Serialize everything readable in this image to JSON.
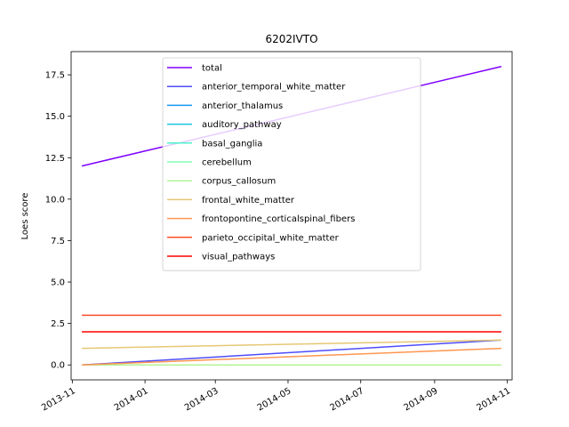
{
  "chart_data": {
    "type": "line",
    "title": "6202IVTO",
    "xlabel": "",
    "ylabel": "Loes score",
    "x": [
      "2013-11-09",
      "2014-10-27"
    ],
    "xlim": [
      "2013-10-31",
      "2014-11-05"
    ],
    "ylim": [
      -0.9,
      18.9
    ],
    "xticks": [
      "2013-11",
      "2014-01",
      "2014-03",
      "2014-05",
      "2014-07",
      "2014-09",
      "2014-11"
    ],
    "yticks": [
      "0.0",
      "2.5",
      "5.0",
      "7.5",
      "10.0",
      "12.5",
      "15.0",
      "17.5"
    ],
    "legend_position": "upper center",
    "series": [
      {
        "name": "total",
        "color": "#8000ff",
        "values": [
          12,
          18
        ]
      },
      {
        "name": "anterior_temporal_white_matter",
        "color": "#4d4dfc",
        "values": [
          0,
          1.5
        ]
      },
      {
        "name": "anterior_thalamus",
        "color": "#1996f3",
        "values": [
          0,
          0
        ]
      },
      {
        "name": "auditory_pathway",
        "color": "#1ac7e4",
        "values": [
          0,
          0
        ]
      },
      {
        "name": "basal_ganglia",
        "color": "#4df3ce",
        "values": [
          0,
          0
        ]
      },
      {
        "name": "cerebellum",
        "color": "#80ffb4",
        "values": [
          0,
          0
        ]
      },
      {
        "name": "corpus_callosum",
        "color": "#b3f396",
        "values": [
          0,
          0
        ]
      },
      {
        "name": "frontal_white_matter",
        "color": "#e6c774",
        "values": [
          1,
          1.5
        ]
      },
      {
        "name": "frontopontine_corticalspinal_fibers",
        "color": "#ff9650",
        "values": [
          0,
          1
        ]
      },
      {
        "name": "parieto_occipital_white_matter",
        "color": "#ff4d28",
        "values": [
          3,
          3
        ]
      },
      {
        "name": "visual_pathways",
        "color": "#ff0000",
        "values": [
          2,
          2
        ]
      }
    ]
  }
}
